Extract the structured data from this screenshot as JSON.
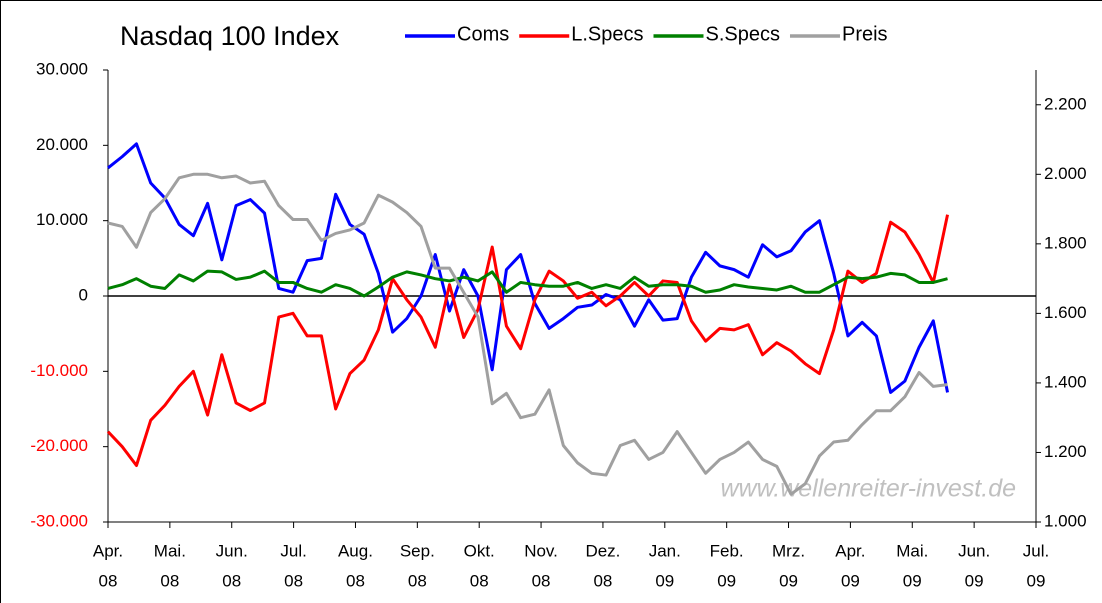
{
  "chart_data": {
    "type": "line",
    "title": "Nasdaq 100 Index",
    "xlim": [
      0,
      15
    ],
    "xticks": [
      {
        "value": 0,
        "label": [
          "Apr.",
          "08"
        ]
      },
      {
        "value": 1,
        "label": [
          "Mai.",
          "08"
        ]
      },
      {
        "value": 2,
        "label": [
          "Jun.",
          "08"
        ]
      },
      {
        "value": 3,
        "label": [
          "Jul.",
          "08"
        ]
      },
      {
        "value": 4,
        "label": [
          "Aug.",
          "08"
        ]
      },
      {
        "value": 5,
        "label": [
          "Sep.",
          "08"
        ]
      },
      {
        "value": 6,
        "label": [
          "Okt.",
          "08"
        ]
      },
      {
        "value": 7,
        "label": [
          "Nov.",
          "08"
        ]
      },
      {
        "value": 8,
        "label": [
          "Dez.",
          "08"
        ]
      },
      {
        "value": 9,
        "label": [
          "Jan.",
          "09"
        ]
      },
      {
        "value": 10,
        "label": [
          "Feb.",
          "09"
        ]
      },
      {
        "value": 11,
        "label": [
          "Mrz.",
          "09"
        ]
      },
      {
        "value": 12,
        "label": [
          "Apr.",
          "09"
        ]
      },
      {
        "value": 13,
        "label": [
          "Mai.",
          "09"
        ]
      },
      {
        "value": 14,
        "label": [
          "Jun.",
          "09"
        ]
      },
      {
        "value": 15,
        "label": [
          "Jul.",
          "09"
        ]
      }
    ],
    "ylim": [
      -30000,
      30000
    ],
    "yticks": [
      {
        "value": -30000,
        "label": "-30.000"
      },
      {
        "value": -20000,
        "label": "-20.000"
      },
      {
        "value": -10000,
        "label": "-10.000"
      },
      0,
      {
        "value": 10000,
        "label": "10.000"
      },
      {
        "value": 20000,
        "label": "20.000"
      },
      {
        "value": 30000,
        "label": "30.000"
      }
    ],
    "y2lim": [
      1000,
      2300
    ],
    "y2ticks": [
      {
        "value": 1000,
        "label": "1.000"
      },
      {
        "value": 1200,
        "label": "1.200"
      },
      {
        "value": 1400,
        "label": "1.400"
      },
      {
        "value": 1600,
        "label": "1.600"
      },
      {
        "value": 1800,
        "label": "1.800"
      },
      {
        "value": 2000,
        "label": "2.000"
      },
      {
        "value": 2200,
        "label": "2.200"
      }
    ],
    "x": [
      0,
      0.23,
      0.46,
      0.69,
      0.92,
      1.15,
      1.38,
      1.61,
      1.84,
      2.07,
      2.3,
      2.53,
      2.76,
      2.99,
      3.22,
      3.45,
      3.68,
      3.91,
      4.14,
      4.37,
      4.6,
      4.83,
      5.06,
      5.29,
      5.52,
      5.75,
      5.98,
      6.21,
      6.44,
      6.67,
      6.9,
      7.13,
      7.36,
      7.59,
      7.82,
      8.05,
      8.28,
      8.51,
      8.74,
      8.97,
      9.2,
      9.43,
      9.66,
      9.89,
      10.12,
      10.35,
      10.58,
      10.81,
      11.04,
      11.27,
      11.5,
      11.73,
      11.96,
      12.19,
      12.42,
      12.65,
      12.88,
      13.11,
      13.34,
      13.57
    ],
    "series": [
      {
        "name": "Coms",
        "color": "#0000ff",
        "values": [
          17000,
          18500,
          20200,
          15000,
          13000,
          9500,
          8000,
          12300,
          4800,
          12000,
          12800,
          11000,
          1000,
          500,
          4700,
          5000,
          13500,
          9500,
          8200,
          3000,
          -4800,
          -3000,
          0,
          5500,
          -2000,
          3500,
          0,
          -9800,
          3500,
          5500,
          -1000,
          -4300,
          -3000,
          -1500,
          -1200,
          200,
          -500,
          -4000,
          -500,
          -3200,
          -3000,
          2500,
          5800,
          4000,
          3500,
          2500,
          6800,
          5200,
          6000,
          8500,
          10000,
          3000,
          -5300,
          -3500,
          -5300,
          -12800,
          -11300,
          -6800,
          -3300,
          -12800
        ]
      },
      {
        "name": "L.Specs",
        "color": "#ff0000",
        "values": [
          -18000,
          -20000,
          -22500,
          -16500,
          -14500,
          -12000,
          -10000,
          -15800,
          -7800,
          -14200,
          -15200,
          -14200,
          -2800,
          -2300,
          -5300,
          -5300,
          -15000,
          -10300,
          -8500,
          -4500,
          2300,
          -500,
          -2800,
          -6800,
          1500,
          -5500,
          -1800,
          6500,
          -4000,
          -7000,
          -500,
          3300,
          2000,
          -300,
          500,
          -1300,
          0,
          1800,
          0,
          2000,
          1800,
          -3300,
          -6000,
          -4300,
          -4500,
          -3800,
          -7800,
          -6200,
          -7300,
          -9000,
          -10300,
          -4500,
          3300,
          1800,
          3000,
          9800,
          8500,
          5500,
          1800,
          10800
        ]
      },
      {
        "name": "S.Specs",
        "color": "#008000",
        "values": [
          1000,
          1500,
          2300,
          1300,
          1000,
          2800,
          2000,
          3300,
          3200,
          2200,
          2500,
          3300,
          1800,
          1800,
          1000,
          500,
          1500,
          1000,
          0,
          1200,
          2500,
          3200,
          2800,
          2300,
          2000,
          2500,
          2000,
          3200,
          500,
          1800,
          1500,
          1300,
          1300,
          1800,
          1000,
          1500,
          1000,
          2500,
          1300,
          1500,
          1500,
          1300,
          500,
          800,
          1500,
          1200,
          1000,
          800,
          1300,
          500,
          500,
          1500,
          2500,
          2300,
          2500,
          3000,
          2800,
          1800,
          1800,
          2300
        ]
      },
      {
        "name": "Preis",
        "color": "#a0a0a0",
        "axis": "y2",
        "values": [
          1860,
          1850,
          1790,
          1890,
          1930,
          1990,
          2000,
          2000,
          1990,
          1995,
          1975,
          1980,
          1910,
          1870,
          1870,
          1810,
          1830,
          1840,
          1860,
          1940,
          1920,
          1890,
          1850,
          1730,
          1730,
          1660,
          1590,
          1340,
          1370,
          1300,
          1310,
          1380,
          1220,
          1170,
          1140,
          1135,
          1220,
          1235,
          1180,
          1200,
          1260,
          1200,
          1140,
          1180,
          1200,
          1230,
          1180,
          1160,
          1080,
          1110,
          1190,
          1230,
          1235,
          1280,
          1320,
          1320,
          1360,
          1430,
          1390,
          1395
        ]
      }
    ],
    "annotation": "www.wellenreiter-invest.de"
  }
}
